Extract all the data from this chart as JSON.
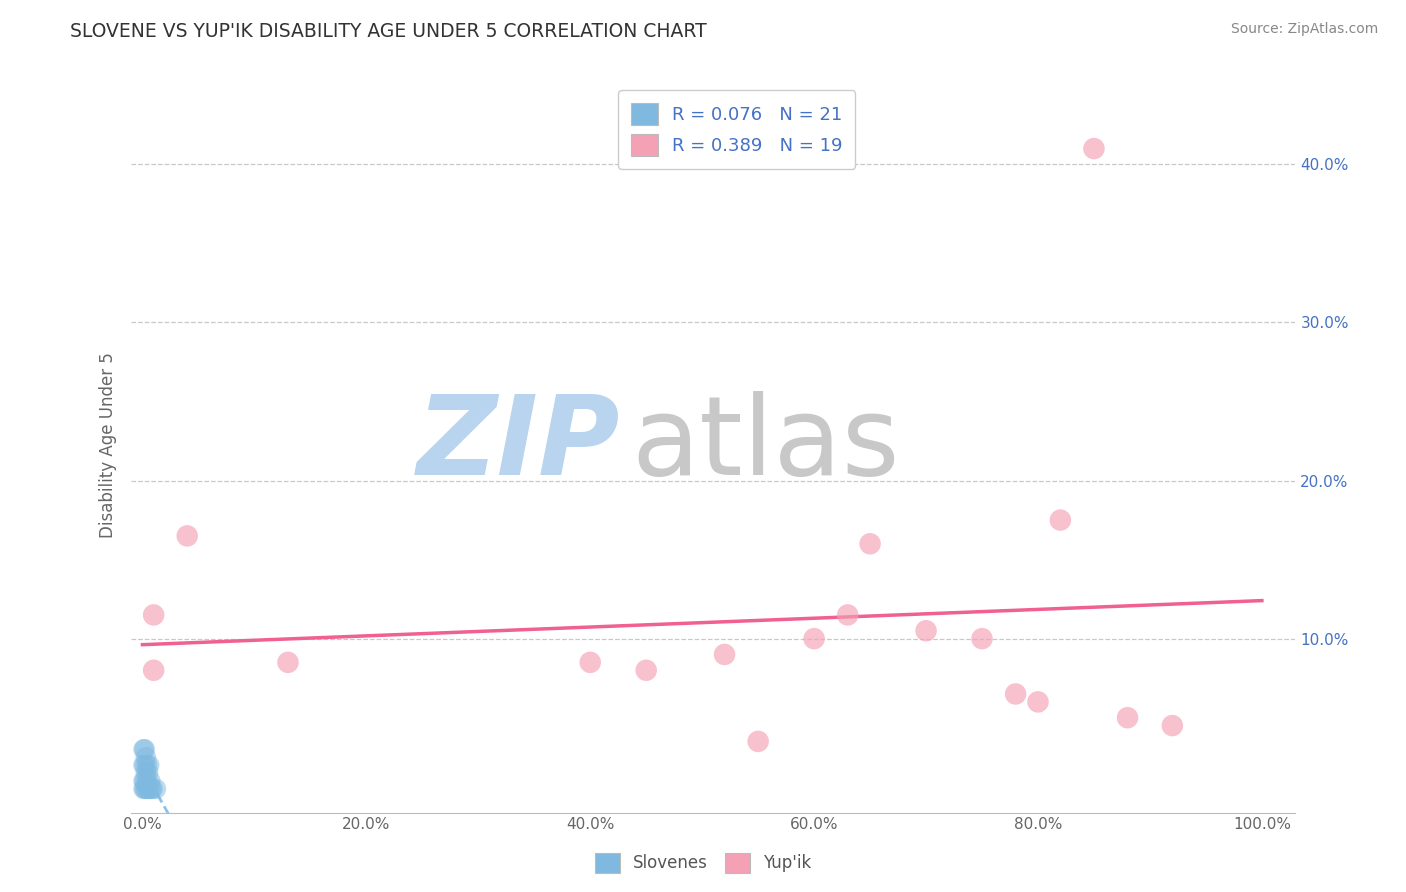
{
  "title": "SLOVENE VS YUP'IK DISABILITY AGE UNDER 5 CORRELATION CHART",
  "source_text": "Source: ZipAtlas.com",
  "ylabel": "Disability Age Under 5",
  "legend_bottom": [
    "Slovenes",
    "Yup'ik"
  ],
  "R_slovene": 0.076,
  "N_slovene": 21,
  "R_yupik": 0.389,
  "N_yupik": 19,
  "xlim": [
    -0.01,
    1.03
  ],
  "ylim": [
    -0.01,
    0.455
  ],
  "xtick_labels": [
    "0.0%",
    "",
    "20.0%",
    "",
    "40.0%",
    "",
    "60.0%",
    "",
    "80.0%",
    "",
    "100.0%"
  ],
  "xtick_vals": [
    0.0,
    0.1,
    0.2,
    0.3,
    0.4,
    0.5,
    0.6,
    0.7,
    0.8,
    0.9,
    1.0
  ],
  "ytick_labels": [
    "10.0%",
    "20.0%",
    "30.0%",
    "40.0%"
  ],
  "ytick_vals": [
    0.1,
    0.2,
    0.3,
    0.4
  ],
  "color_slovene": "#7fb9e0",
  "color_slovene_line": "#7ab8e8",
  "color_yupik": "#f4a0b5",
  "color_yupik_line": "#f06090",
  "background_color": "#ffffff",
  "grid_color": "#c8c8c8",
  "slovene_x": [
    0.001,
    0.001,
    0.001,
    0.001,
    0.002,
    0.002,
    0.002,
    0.002,
    0.003,
    0.003,
    0.003,
    0.004,
    0.004,
    0.005,
    0.005,
    0.006,
    0.006,
    0.007,
    0.008,
    0.009,
    0.012
  ],
  "slovene_y": [
    0.005,
    0.01,
    0.02,
    0.03,
    0.005,
    0.01,
    0.02,
    0.03,
    0.005,
    0.015,
    0.025,
    0.01,
    0.02,
    0.005,
    0.015,
    0.005,
    0.02,
    0.01,
    0.005,
    0.005,
    0.005
  ],
  "yupik_x": [
    0.01,
    0.01,
    0.04,
    0.13,
    0.4,
    0.45,
    0.52,
    0.55,
    0.6,
    0.63,
    0.65,
    0.7,
    0.75,
    0.78,
    0.8,
    0.82,
    0.85,
    0.88,
    0.92
  ],
  "yupik_y": [
    0.115,
    0.08,
    0.165,
    0.085,
    0.085,
    0.08,
    0.09,
    0.035,
    0.1,
    0.115,
    0.16,
    0.105,
    0.1,
    0.065,
    0.06,
    0.175,
    0.41,
    0.05,
    0.045
  ],
  "watermark_zip": "ZIP",
  "watermark_atlas": "atlas",
  "watermark_color_zip": "#b8d4ee",
  "watermark_color_atlas": "#c8c8c8",
  "watermark_fontsize": 80
}
